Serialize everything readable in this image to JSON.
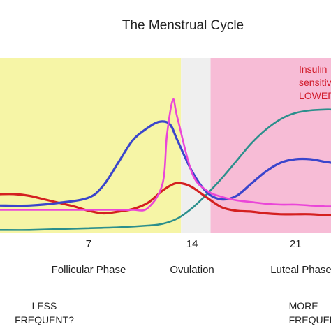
{
  "chart_data": {
    "type": "line",
    "title": "The Menstrual Cycle",
    "xlabel": "",
    "ylabel": "",
    "xlim": [
      1.0,
      23.4
    ],
    "ylim": [
      0,
      100
    ],
    "x_ticks": [
      7,
      14,
      21
    ],
    "grid": false,
    "legend": "none",
    "bands": [
      {
        "name": "follicular",
        "from": 1.0,
        "to": 13.25,
        "color": "#f6f5a6"
      },
      {
        "name": "ovulation",
        "from": 13.25,
        "to": 15.25,
        "color": "#efefef"
      },
      {
        "name": "luteal",
        "from": 15.25,
        "to": 23.4,
        "color": "#f7bcd6"
      }
    ],
    "phase_labels": [
      {
        "x": 7,
        "text": "Follicular Phase"
      },
      {
        "x": 14,
        "text": "Ovulation"
      },
      {
        "x": 21,
        "text": "Luteal Phase"
      }
    ],
    "notes": [
      {
        "x": 4,
        "lines": [
          "LESS",
          "FREQUENT?"
        ]
      },
      {
        "x": 21.3,
        "lines": [
          "MORE",
          "FREQUENT?"
        ]
      }
    ],
    "annotation": {
      "lines": [
        "Insulin",
        "sensitivity",
        "LOWER"
      ],
      "color": "#d11a2a"
    },
    "series": [
      {
        "color": "#2b8f8c",
        "width": 2.6,
        "x": [
          1,
          3,
          5,
          7,
          9,
          11,
          12,
          13,
          14,
          15,
          16,
          17,
          18,
          19,
          20,
          21,
          22,
          23,
          23.4
        ],
        "y": [
          1.5,
          1.5,
          2,
          2.5,
          3,
          4,
          5,
          8,
          14,
          22,
          31,
          41,
          51,
          59,
          65,
          68.5,
          70,
          70.5,
          70.5
        ]
      },
      {
        "color": "#d42020",
        "width": 3.2,
        "x": [
          1,
          2,
          3,
          4,
          5,
          6,
          7,
          8,
          9,
          10,
          11,
          12,
          12.8,
          13.4,
          14,
          15,
          16,
          17,
          18,
          19,
          20,
          21,
          22,
          23,
          23.4
        ],
        "y": [
          22,
          22,
          21,
          19,
          17,
          15,
          12.5,
          11,
          12,
          13.5,
          17,
          24,
          28,
          28,
          26,
          20,
          14.5,
          12.5,
          12,
          11,
          10.5,
          10.5,
          10.5,
          10,
          10
        ]
      },
      {
        "color": "#3a45cc",
        "width": 3.2,
        "x": [
          1,
          3,
          5,
          7,
          8,
          9,
          10,
          11,
          11.8,
          12.5,
          13,
          14,
          15,
          16,
          17,
          18,
          19,
          20,
          21,
          22,
          23,
          23.4
        ],
        "y": [
          15.5,
          15.5,
          17,
          20,
          27,
          40,
          53,
          60,
          63.5,
          62,
          53,
          35,
          23,
          19,
          21,
          28,
          35,
          40,
          42,
          42,
          40.5,
          40
        ]
      },
      {
        "color": "#ea46d8",
        "width": 2.6,
        "x": [
          1,
          3,
          5,
          7,
          9,
          10,
          11,
          12,
          12.3,
          12.7,
          13,
          14,
          15,
          16,
          17,
          18,
          19,
          20,
          21,
          22,
          23,
          23.4
        ],
        "y": [
          13,
          13,
          13,
          13,
          13,
          13,
          14,
          28,
          56,
          76,
          66,
          34,
          24,
          20.5,
          18.5,
          17.5,
          16.5,
          16,
          16,
          15.5,
          15,
          15
        ]
      }
    ]
  }
}
